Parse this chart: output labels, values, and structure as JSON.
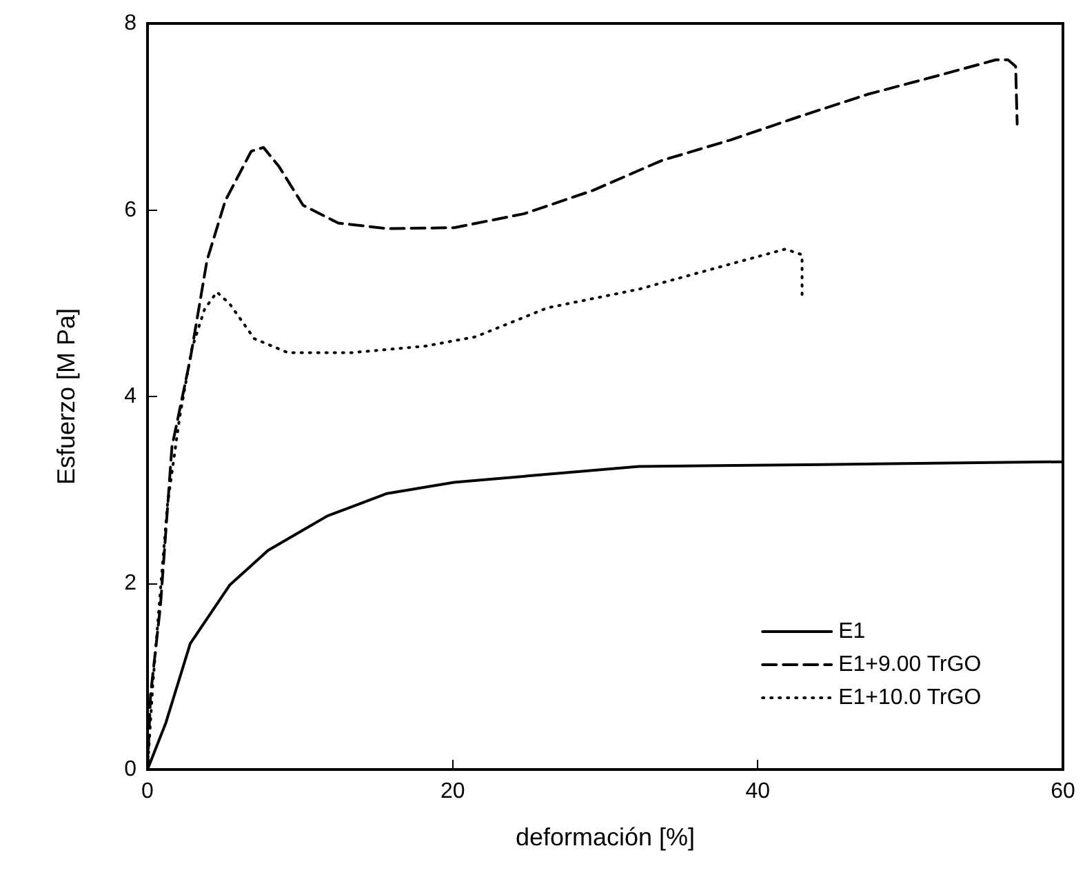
{
  "chart_data": {
    "type": "line",
    "xlabel": "deformación [%]",
    "ylabel": "Esfuerzo [M Pa]",
    "xlim": [
      0,
      60
    ],
    "xticks": [
      0,
      20,
      40,
      60
    ],
    "ylim": [
      0,
      8
    ],
    "yticks": [
      0,
      2,
      4,
      6,
      8
    ],
    "grid": false,
    "legend": "bottom right",
    "marker": "none",
    "series": [
      {
        "name": "E1",
        "color": "#000000",
        "line_style": "solid",
        "x": [
          0,
          1.2,
          2.8,
          5.4,
          7.9,
          11.8,
          15.7,
          20.1,
          32.2,
          44.3,
          60
        ],
        "values": [
          0,
          0.5,
          1.35,
          1.98,
          2.35,
          2.72,
          2.96,
          3.08,
          3.25,
          3.27,
          3.3
        ]
      },
      {
        "name": "E1+9.00 TrGO",
        "color": "#000000",
        "line_style": "dashed",
        "x": [
          0,
          0.2,
          0.85,
          1.6,
          2.8,
          3.9,
          5.1,
          6.8,
          7.6,
          8.6,
          10.2,
          12.5,
          15.7,
          20.1,
          24.7,
          29.2,
          33.7,
          38.2,
          42.7,
          47.2,
          51.8,
          55.6,
          56.4,
          56.9,
          57
        ],
        "values": [
          0,
          0.8,
          1.76,
          3.46,
          4.4,
          5.46,
          6.1,
          6.63,
          6.67,
          6.47,
          6.05,
          5.86,
          5.8,
          5.81,
          5.96,
          6.21,
          6.53,
          6.75,
          7.0,
          7.24,
          7.44,
          7.61,
          7.61,
          7.54,
          6.92
        ]
      },
      {
        "name": "E1+10.0 TrGO",
        "color": "#000000",
        "line_style": "dotted",
        "x": [
          0,
          0.35,
          1.3,
          2.1,
          2.9,
          3.75,
          4.55,
          5.4,
          7.0,
          9.2,
          13.4,
          18.2,
          21.5,
          26.2,
          32.2,
          38.2,
          41.8,
          42.9,
          42.9
        ],
        "values": [
          0,
          0.92,
          2.83,
          3.77,
          4.51,
          4.94,
          5.12,
          4.99,
          4.62,
          4.47,
          4.47,
          4.54,
          4.64,
          4.95,
          5.15,
          5.42,
          5.58,
          5.52,
          5.05
        ]
      }
    ]
  }
}
